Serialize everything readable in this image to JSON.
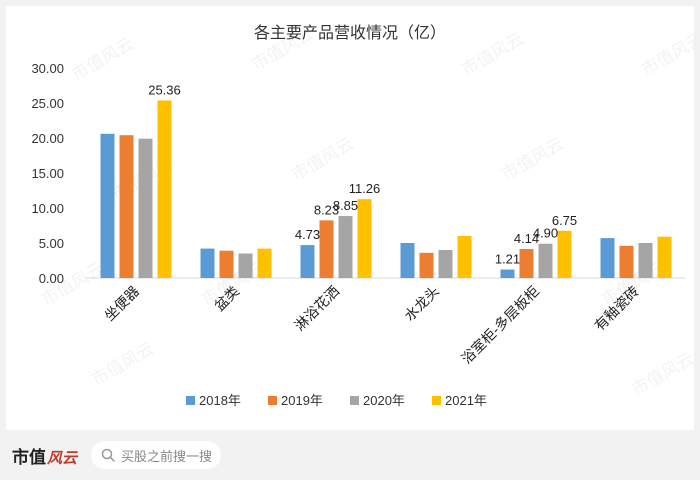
{
  "chart_data": {
    "type": "bar",
    "title": "各主要产品营收情况（亿）",
    "categories": [
      "坐便器",
      "盆类",
      "淋浴花洒",
      "水龙头",
      "浴室柜-多层板柜",
      "有釉瓷砖"
    ],
    "series": [
      {
        "name": "2018年",
        "color": "#5b9bd5",
        "values": [
          20.6,
          4.2,
          4.7,
          5.0,
          1.21,
          5.7
        ]
      },
      {
        "name": "2019年",
        "color": "#ed7d31",
        "values": [
          20.4,
          3.9,
          8.23,
          3.6,
          4.14,
          4.6
        ]
      },
      {
        "name": "2020年",
        "color": "#a5a5a5",
        "values": [
          19.9,
          3.5,
          8.85,
          4.0,
          4.9,
          5.0
        ]
      },
      {
        "name": "2021年",
        "color": "#ffc000",
        "values": [
          25.36,
          4.2,
          11.26,
          6.0,
          6.75,
          5.9
        ]
      }
    ],
    "data_labels": [
      {
        "series": 3,
        "category": 0,
        "text": "25.36"
      },
      {
        "series": 0,
        "category": 2,
        "text": "4.73"
      },
      {
        "series": 1,
        "category": 2,
        "text": "8.23"
      },
      {
        "series": 2,
        "category": 2,
        "text": "8.85"
      },
      {
        "series": 3,
        "category": 2,
        "text": "11.26"
      },
      {
        "series": 0,
        "category": 4,
        "text": "1.21"
      },
      {
        "series": 1,
        "category": 4,
        "text": "4.14"
      },
      {
        "series": 2,
        "category": 4,
        "text": "4.90"
      },
      {
        "series": 3,
        "category": 4,
        "text": "6.75"
      }
    ],
    "yticks": [
      "0.00",
      "5.00",
      "10.00",
      "15.00",
      "20.00",
      "25.00",
      "30.00"
    ],
    "ylim": [
      0,
      30
    ],
    "grid": false,
    "legend_position": "bottom"
  },
  "footer": {
    "logo_main": "市值",
    "logo_script": "风云",
    "search_placeholder": "买股之前搜一搜"
  },
  "watermark": "市值风云"
}
